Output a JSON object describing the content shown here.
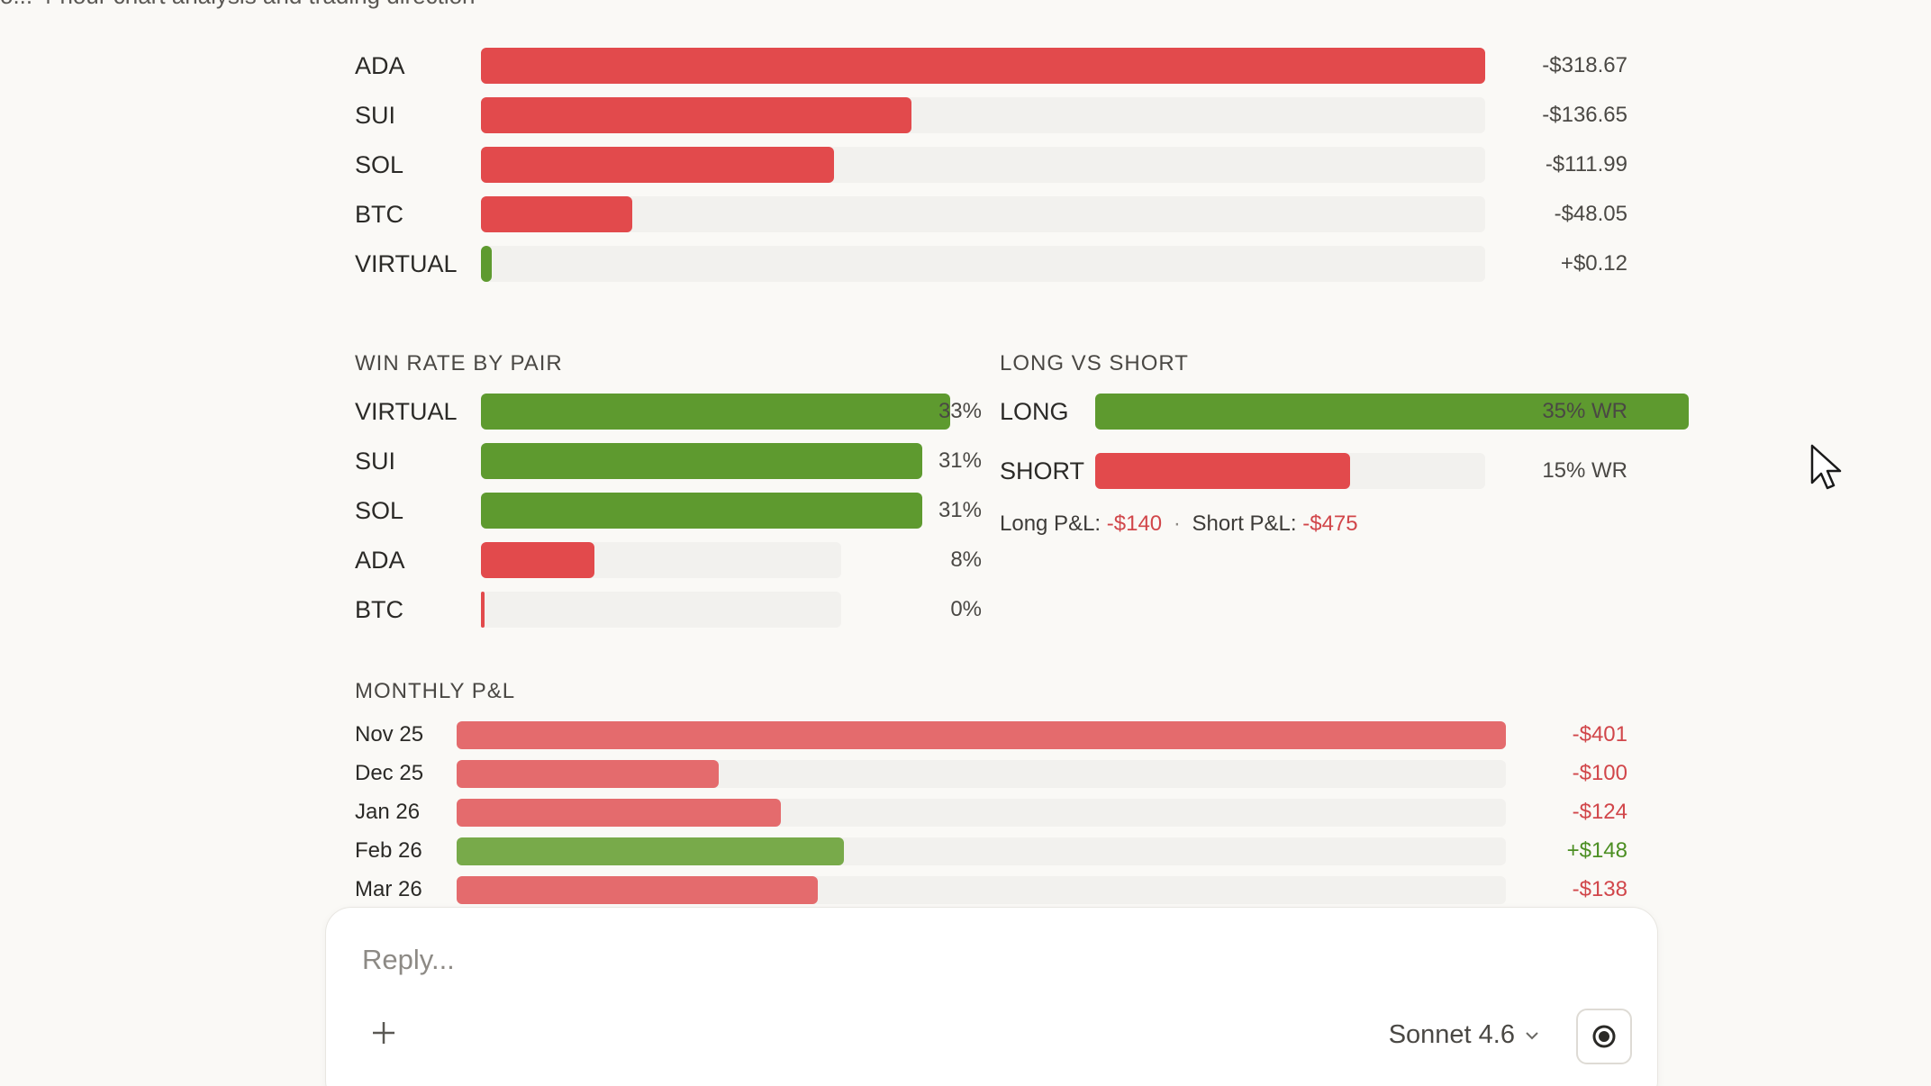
{
  "header": {
    "truncated_text": "o... 4-hour chart analysis and trading direction"
  },
  "pnl_by_pair": {
    "rows": [
      {
        "label": "ADA",
        "value_text": "-$318.67",
        "value": -318.67
      },
      {
        "label": "SUI",
        "value_text": "-$136.65",
        "value": -136.65
      },
      {
        "label": "SOL",
        "value_text": "-$111.99",
        "value": -111.99
      },
      {
        "label": "BTC",
        "value_text": "-$48.05",
        "value": -48.05
      },
      {
        "label": "VIRTUAL",
        "value_text": "+$0.12",
        "value": 0.12
      }
    ]
  },
  "win_rate": {
    "title": "WIN RATE BY PAIR",
    "rows": [
      {
        "label": "VIRTUAL",
        "value_text": "33%",
        "value": 33
      },
      {
        "label": "SUI",
        "value_text": "31%",
        "value": 31
      },
      {
        "label": "SOL",
        "value_text": "31%",
        "value": 31
      },
      {
        "label": "ADA",
        "value_text": "8%",
        "value": 8
      },
      {
        "label": "BTC",
        "value_text": "0%",
        "value": 0
      }
    ]
  },
  "long_short": {
    "title": "LONG VS SHORT",
    "rows": [
      {
        "label": "LONG",
        "value_text": "35% WR",
        "value": 35
      },
      {
        "label": "SHORT",
        "value_text": "15% WR",
        "value": 15
      }
    ],
    "long_pnl_label": "Long P&L:",
    "long_pnl_value": "-$140",
    "separator": "·",
    "short_pnl_label": "Short P&L:",
    "short_pnl_value": "-$475"
  },
  "monthly": {
    "title": "MONTHLY P&L",
    "rows": [
      {
        "label": "Nov 25",
        "value_text": "-$401",
        "value": -401
      },
      {
        "label": "Dec 25",
        "value_text": "-$100",
        "value": -100
      },
      {
        "label": "Jan 26",
        "value_text": "-$124",
        "value": -124
      },
      {
        "label": "Feb 26",
        "value_text": "+$148",
        "value": 148
      },
      {
        "label": "Mar 26",
        "value_text": "-$138",
        "value": -138
      }
    ]
  },
  "composer": {
    "placeholder": "Reply...",
    "model_label": "Sonnet 4.6",
    "add_icon": "plus-icon",
    "model_icon": "chevron-down-icon",
    "stop_icon": "stop-icon"
  },
  "colors": {
    "negative": "#e24a4c",
    "positive": "#5e9a2f",
    "monthly_negative": "#e46b6d",
    "monthly_positive": "#78aa4a"
  }
}
